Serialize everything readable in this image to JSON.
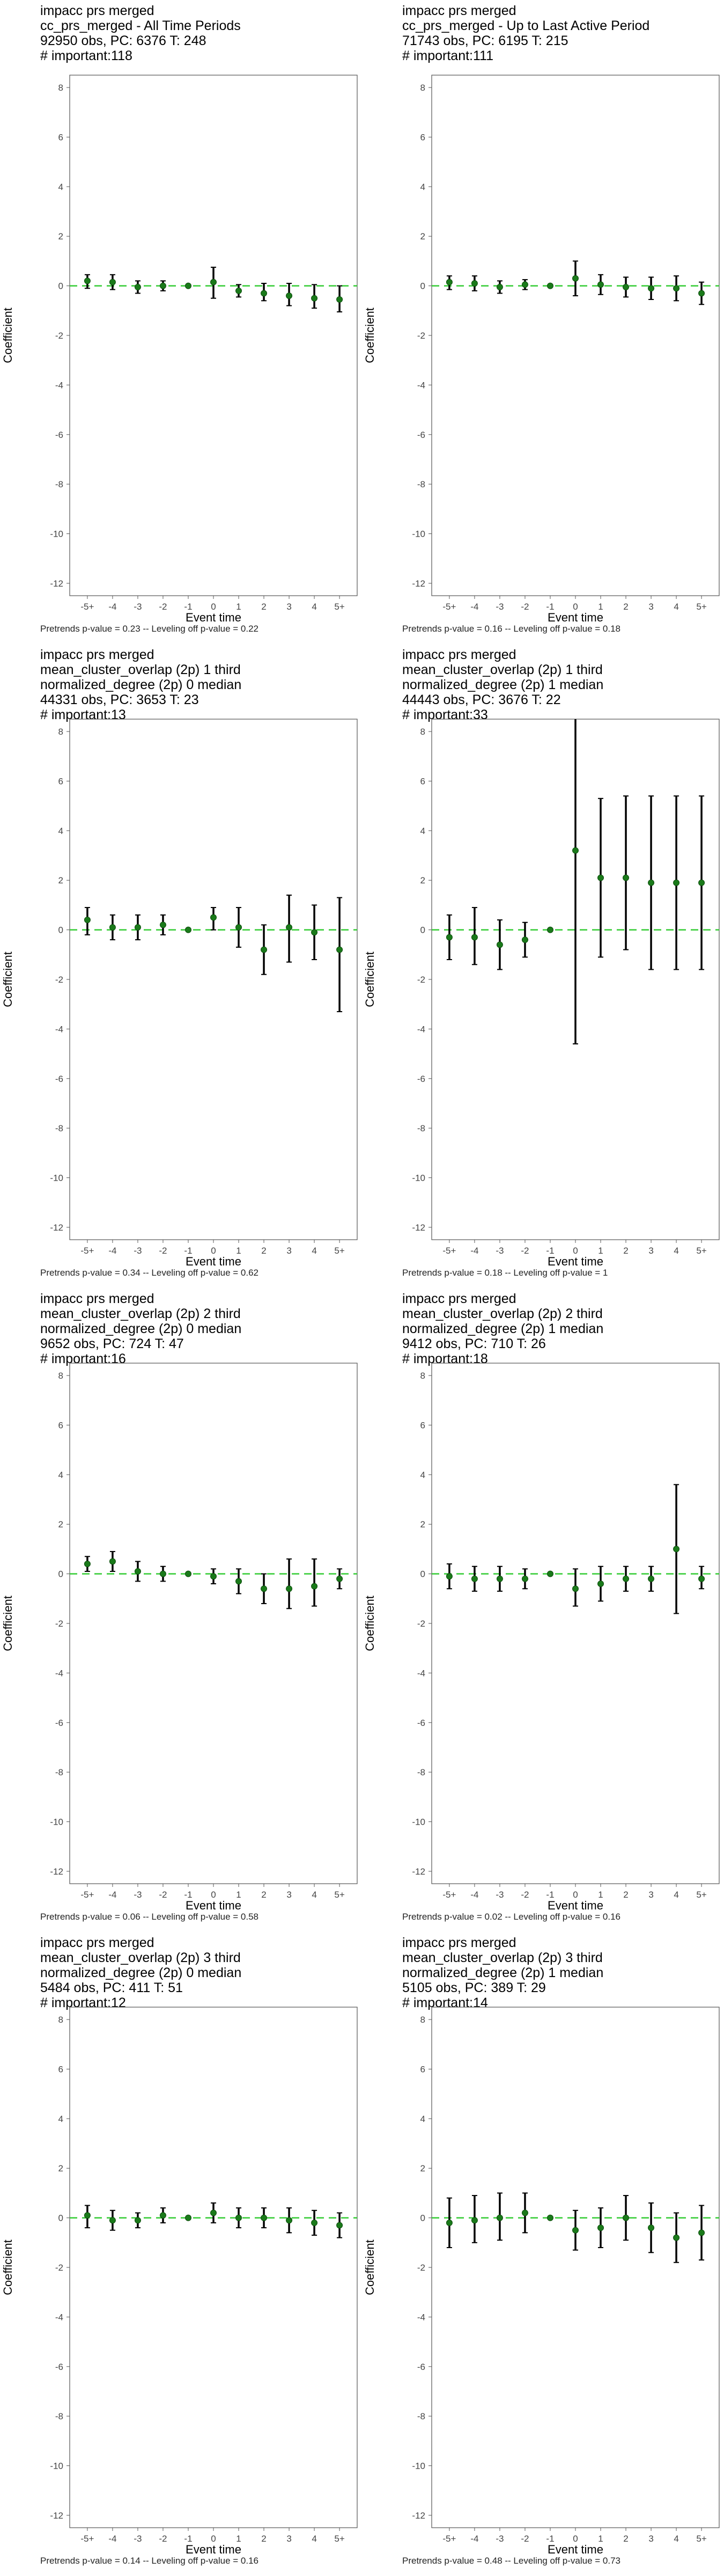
{
  "chart_data": [
    {
      "type": "scatter",
      "title_lines": [
        "impacc prs merged",
        "cc_prs_merged - All Time Periods",
        "92950 obs, PC: 6376 T: 248",
        "# important:118"
      ],
      "xlabel": "Event time",
      "ylabel": "Coefficient",
      "categories": [
        "-5+",
        "-4",
        "-3",
        "-2",
        "-1",
        "0",
        "1",
        "2",
        "3",
        "4",
        "5+"
      ],
      "y_ticks": [
        8,
        6,
        4,
        2,
        0,
        -2,
        -4,
        -6,
        -8,
        -10,
        -12
      ],
      "ylim": [
        -12.5,
        8.5
      ],
      "estimates": [
        0.2,
        0.15,
        -0.05,
        0.0,
        0.0,
        0.15,
        -0.2,
        -0.3,
        -0.4,
        -0.5,
        -0.55
      ],
      "ci_low": [
        -0.1,
        -0.15,
        -0.3,
        -0.2,
        0.0,
        -0.5,
        -0.45,
        -0.6,
        -0.8,
        -0.9,
        -1.05
      ],
      "ci_high": [
        0.45,
        0.45,
        0.2,
        0.2,
        0.0,
        0.75,
        0.05,
        0.1,
        0.1,
        0.05,
        0.0
      ],
      "footer": "Pretrends p-value = 0.23 -- Leveling off p-value = 0.22",
      "reference_line_y": 0,
      "grid": false
    },
    {
      "type": "scatter",
      "title_lines": [
        "impacc prs merged",
        "cc_prs_merged - Up to Last Active Period",
        "71743 obs, PC: 6195 T: 215",
        "# important:111"
      ],
      "xlabel": "Event time",
      "ylabel": "Coefficient",
      "categories": [
        "-5+",
        "-4",
        "-3",
        "-2",
        "-1",
        "0",
        "1",
        "2",
        "3",
        "4",
        "5+"
      ],
      "y_ticks": [
        8,
        6,
        4,
        2,
        0,
        -2,
        -4,
        -6,
        -8,
        -10,
        -12
      ],
      "ylim": [
        -12.5,
        8.5
      ],
      "estimates": [
        0.15,
        0.1,
        -0.05,
        0.05,
        0.0,
        0.3,
        0.05,
        -0.05,
        -0.1,
        -0.1,
        -0.3
      ],
      "ci_low": [
        -0.15,
        -0.2,
        -0.3,
        -0.15,
        0.0,
        -0.4,
        -0.35,
        -0.45,
        -0.55,
        -0.6,
        -0.75
      ],
      "ci_high": [
        0.4,
        0.4,
        0.2,
        0.25,
        0.0,
        1.0,
        0.45,
        0.35,
        0.35,
        0.4,
        0.15
      ],
      "footer": "Pretrends p-value = 0.16 -- Leveling off p-value = 0.18",
      "reference_line_y": 0,
      "grid": false
    },
    {
      "type": "scatter",
      "title_lines": [
        "impacc prs merged",
        "mean_cluster_overlap (2p) 1 third",
        "normalized_degree (2p) 0 median",
        "44331 obs, PC: 3653 T: 23",
        "# important:13"
      ],
      "xlabel": "Event time",
      "ylabel": "Coefficient",
      "categories": [
        "-5+",
        "-4",
        "-3",
        "-2",
        "-1",
        "0",
        "1",
        "2",
        "3",
        "4",
        "5+"
      ],
      "y_ticks": [
        8,
        6,
        4,
        2,
        0,
        -2,
        -4,
        -6,
        -8,
        -10,
        -12
      ],
      "ylim": [
        -12.5,
        8.5
      ],
      "estimates": [
        0.4,
        0.1,
        0.1,
        0.2,
        0.0,
        0.5,
        0.1,
        -0.8,
        0.1,
        -0.1,
        -0.8
      ],
      "ci_low": [
        -0.2,
        -0.4,
        -0.4,
        -0.2,
        0.0,
        0.0,
        -0.7,
        -1.8,
        -1.3,
        -1.2,
        -3.3
      ],
      "ci_high": [
        0.9,
        0.6,
        0.6,
        0.6,
        0.0,
        0.9,
        0.9,
        0.2,
        1.4,
        1.0,
        1.3
      ],
      "footer": "Pretrends p-value = 0.34 -- Leveling off p-value = 0.62",
      "reference_line_y": 0,
      "grid": false
    },
    {
      "type": "scatter",
      "title_lines": [
        "impacc prs merged",
        "mean_cluster_overlap (2p) 1 third",
        "normalized_degree (2p) 1 median",
        "44443 obs, PC: 3676 T: 22",
        "# important:33"
      ],
      "xlabel": "Event time",
      "ylabel": "Coefficient",
      "categories": [
        "-5+",
        "-4",
        "-3",
        "-2",
        "-1",
        "0",
        "1",
        "2",
        "3",
        "4",
        "5+"
      ],
      "y_ticks": [
        8,
        6,
        4,
        2,
        0,
        -2,
        -4,
        -6,
        -8,
        -10,
        -12
      ],
      "ylim": [
        -12.5,
        8.5
      ],
      "estimates": [
        -0.3,
        -0.3,
        -0.6,
        -0.4,
        0.0,
        3.2,
        2.1,
        2.1,
        1.9,
        1.9,
        1.9
      ],
      "ci_low": [
        -1.2,
        -1.4,
        -1.6,
        -1.1,
        0.0,
        -4.6,
        -1.1,
        -0.8,
        -1.6,
        -1.6,
        -1.6
      ],
      "ci_high": [
        0.6,
        0.9,
        0.4,
        0.3,
        0.0,
        8.8,
        5.3,
        5.4,
        5.4,
        5.4,
        5.4
      ],
      "footer": "Pretrends p-value = 0.18 -- Leveling off p-value = 1",
      "reference_line_y": 0,
      "grid": false
    },
    {
      "type": "scatter",
      "title_lines": [
        "impacc prs merged",
        "mean_cluster_overlap (2p) 2 third",
        "normalized_degree (2p) 0 median",
        "9652 obs, PC: 724 T: 47",
        "# important:16"
      ],
      "xlabel": "Event time",
      "ylabel": "Coefficient",
      "categories": [
        "-5+",
        "-4",
        "-3",
        "-2",
        "-1",
        "0",
        "1",
        "2",
        "3",
        "4",
        "5+"
      ],
      "y_ticks": [
        8,
        6,
        4,
        2,
        0,
        -2,
        -4,
        -6,
        -8,
        -10,
        -12
      ],
      "ylim": [
        -12.5,
        8.5
      ],
      "estimates": [
        0.4,
        0.5,
        0.1,
        0.0,
        0.0,
        -0.1,
        -0.3,
        -0.6,
        -0.6,
        -0.5,
        -0.2
      ],
      "ci_low": [
        0.1,
        0.1,
        -0.3,
        -0.3,
        0.0,
        -0.4,
        -0.8,
        -1.2,
        -1.4,
        -1.3,
        -0.6
      ],
      "ci_high": [
        0.7,
        0.9,
        0.5,
        0.3,
        0.0,
        0.2,
        0.2,
        0.0,
        0.6,
        0.6,
        0.2
      ],
      "footer": "Pretrends p-value = 0.06 -- Leveling off p-value = 0.58",
      "reference_line_y": 0,
      "grid": false
    },
    {
      "type": "scatter",
      "title_lines": [
        "impacc prs merged",
        "mean_cluster_overlap (2p) 2 third",
        "normalized_degree (2p) 1 median",
        "9412 obs, PC: 710 T: 26",
        "# important:18"
      ],
      "xlabel": "Event time",
      "ylabel": "Coefficient",
      "categories": [
        "-5+",
        "-4",
        "-3",
        "-2",
        "-1",
        "0",
        "1",
        "2",
        "3",
        "4",
        "5+"
      ],
      "y_ticks": [
        8,
        6,
        4,
        2,
        0,
        -2,
        -4,
        -6,
        -8,
        -10,
        -12
      ],
      "ylim": [
        -12.5,
        8.5
      ],
      "estimates": [
        -0.1,
        -0.2,
        -0.2,
        -0.2,
        0.0,
        -0.6,
        -0.4,
        -0.2,
        -0.2,
        1.0,
        -0.2
      ],
      "ci_low": [
        -0.6,
        -0.7,
        -0.7,
        -0.6,
        0.0,
        -1.3,
        -1.1,
        -0.7,
        -0.7,
        -1.6,
        -0.6
      ],
      "ci_high": [
        0.4,
        0.3,
        0.3,
        0.2,
        0.0,
        0.2,
        0.3,
        0.3,
        0.3,
        3.6,
        0.3
      ],
      "footer": "Pretrends p-value = 0.02 -- Leveling off p-value = 0.16",
      "reference_line_y": 0,
      "grid": false
    },
    {
      "type": "scatter",
      "title_lines": [
        "impacc prs merged",
        "mean_cluster_overlap (2p) 3 third",
        "normalized_degree (2p) 0 median",
        "5484 obs, PC: 411 T: 51",
        "# important:12"
      ],
      "xlabel": "Event time",
      "ylabel": "Coefficient",
      "categories": [
        "-5+",
        "-4",
        "-3",
        "-2",
        "-1",
        "0",
        "1",
        "2",
        "3",
        "4",
        "5+"
      ],
      "y_ticks": [
        8,
        6,
        4,
        2,
        0,
        -2,
        -4,
        -6,
        -8,
        -10,
        -12
      ],
      "ylim": [
        -12.5,
        8.5
      ],
      "estimates": [
        0.1,
        -0.1,
        -0.1,
        0.1,
        0.0,
        0.2,
        0.0,
        0.0,
        -0.1,
        -0.2,
        -0.3
      ],
      "ci_low": [
        -0.4,
        -0.5,
        -0.4,
        -0.2,
        0.0,
        -0.2,
        -0.4,
        -0.4,
        -0.6,
        -0.7,
        -0.8
      ],
      "ci_high": [
        0.5,
        0.3,
        0.2,
        0.4,
        0.0,
        0.6,
        0.4,
        0.4,
        0.4,
        0.3,
        0.2
      ],
      "footer": "Pretrends p-value = 0.14 -- Leveling off p-value = 0.16",
      "reference_line_y": 0,
      "grid": false
    },
    {
      "type": "scatter",
      "title_lines": [
        "impacc prs merged",
        "mean_cluster_overlap (2p) 3 third",
        "normalized_degree (2p) 1 median",
        "5105 obs, PC: 389 T: 29",
        "# important:14"
      ],
      "xlabel": "Event time",
      "ylabel": "Coefficient",
      "categories": [
        "-5+",
        "-4",
        "-3",
        "-2",
        "-1",
        "0",
        "1",
        "2",
        "3",
        "4",
        "5+"
      ],
      "y_ticks": [
        8,
        6,
        4,
        2,
        0,
        -2,
        -4,
        -6,
        -8,
        -10,
        -12
      ],
      "ylim": [
        -12.5,
        8.5
      ],
      "estimates": [
        -0.2,
        -0.1,
        0.0,
        0.2,
        0.0,
        -0.5,
        -0.4,
        0.0,
        -0.4,
        -0.8,
        -0.6
      ],
      "ci_low": [
        -1.2,
        -1.0,
        -0.9,
        -0.6,
        0.0,
        -1.3,
        -1.2,
        -0.9,
        -1.4,
        -1.8,
        -1.7
      ],
      "ci_high": [
        0.8,
        0.9,
        1.0,
        1.0,
        0.0,
        0.3,
        0.4,
        0.9,
        0.6,
        0.2,
        0.5
      ],
      "footer": "Pretrends p-value = 0.48 -- Leveling off p-value = 0.73",
      "reference_line_y": 0,
      "grid": false
    }
  ],
  "colors": {
    "point": "#1a7a1a",
    "reference_line": "#33cc33",
    "error_bar": "#000000",
    "axis_text": "#444444",
    "frame": "#555555"
  }
}
